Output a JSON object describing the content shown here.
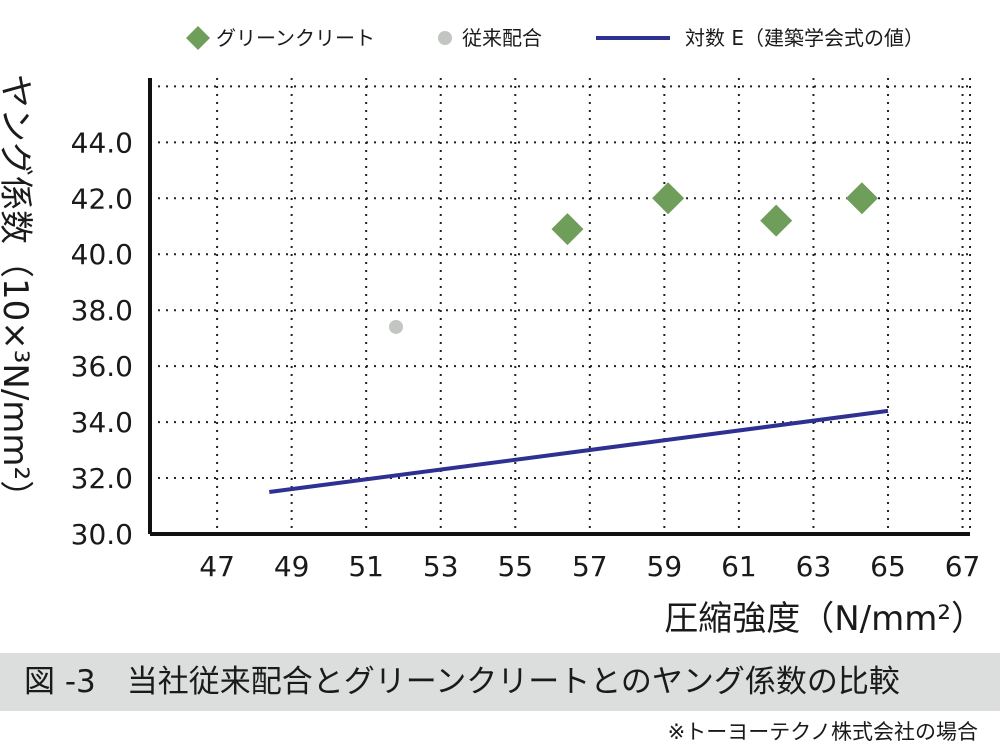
{
  "chart_data": {
    "type": "scatter",
    "xlabel": "圧縮強度（N/mm²）",
    "ylabel": "ヤング係数（10×³N/mm²）",
    "x_ticks": [
      47,
      49,
      51,
      53,
      55,
      57,
      59,
      61,
      63,
      65,
      67
    ],
    "y_ticks": [
      "30.0",
      "32.0",
      "34.0",
      "36.0",
      "38.0",
      "40.0",
      "42.0",
      "44.0"
    ],
    "xlim": [
      45.2,
      67.2
    ],
    "ylim": [
      30.0,
      46.3
    ],
    "grid": true,
    "legend_position": "top",
    "series": [
      {
        "name": "グリーンクリート",
        "kind": "scatter",
        "marker": "diamond",
        "color": "#6e9e5a",
        "points": [
          [
            56.4,
            40.9
          ],
          [
            59.1,
            42.0
          ],
          [
            62.0,
            41.2
          ],
          [
            64.3,
            42.0
          ]
        ]
      },
      {
        "name": "従来配合",
        "kind": "scatter",
        "marker": "circle",
        "color": "#c2c5c1",
        "points": [
          [
            51.8,
            37.4
          ]
        ]
      },
      {
        "name": "対数 E（建築学会式の値）",
        "kind": "line",
        "color": "#2e3192",
        "points": [
          [
            48.4,
            31.5
          ],
          [
            65.0,
            34.4
          ]
        ]
      }
    ]
  },
  "caption": "図 -3　当社従来配合とグリーンクリートとのヤング係数の比較",
  "source_note": "※トーヨーテクノ株式会社の場合"
}
